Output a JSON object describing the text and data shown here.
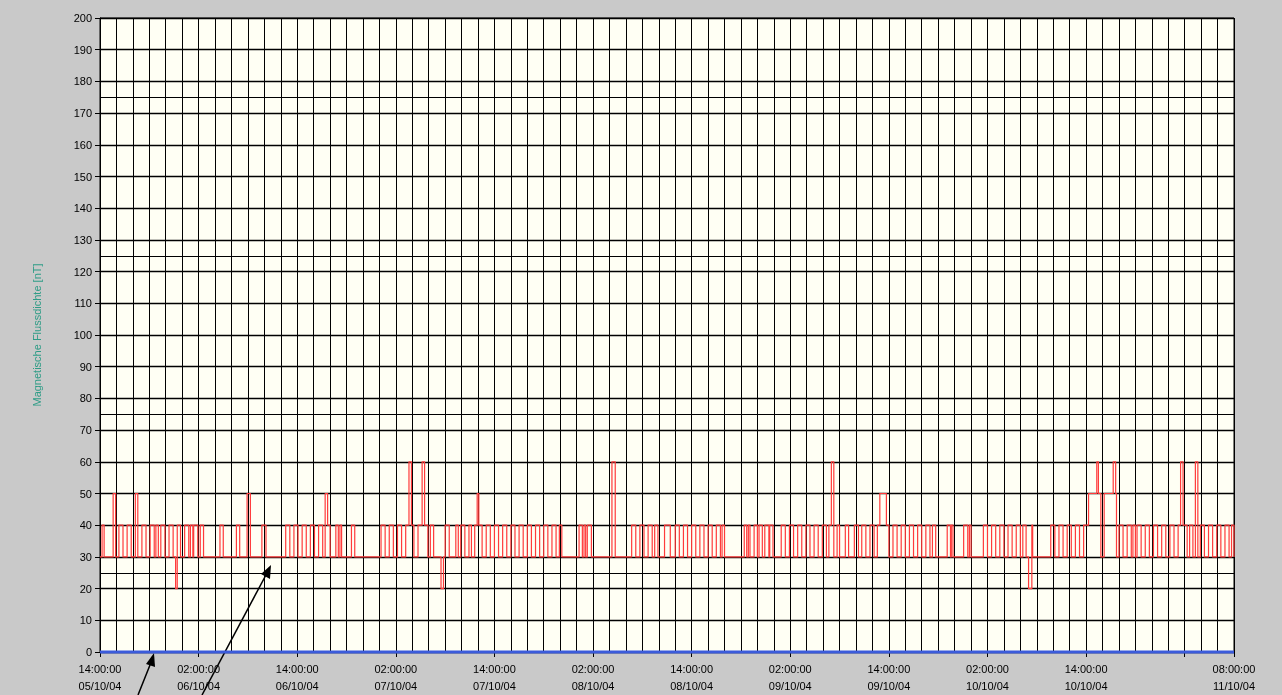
{
  "chart_data": {
    "type": "step",
    "ylabel": "Magnetische Flussdichte [nT]",
    "xlim": [
      "--10-05T14:00",
      "--10-11T08:00"
    ],
    "ylim": [
      0,
      200
    ],
    "xticks": [
      {
        "value": "--10-05T14:00",
        "label": "14:00:00\n05/10/04"
      },
      {
        "value": "--10-06T02:00",
        "label": "02:00:00\n06/10/04"
      },
      {
        "value": "--10-06T14:00",
        "label": "14:00:00\n06/10/04"
      },
      {
        "value": "--10-07T02:00",
        "label": "02:00:00\n07/10/04"
      },
      {
        "value": "--10-07T14:00",
        "label": "14:00:00\n07/10/04"
      },
      {
        "value": "--10-08T02:00",
        "label": "02:00:00\n08/10/04"
      },
      {
        "value": "--10-08T14:00",
        "label": "14:00:00\n08/10/04"
      },
      {
        "value": "--10-09T02:00",
        "label": "02:00:00\n09/10/04"
      },
      {
        "value": "--10-09T14:00",
        "label": "14:00:00\n09/10/04"
      },
      {
        "value": "--10-10T02:00",
        "label": "02:00:00\n10/10/04"
      },
      {
        "value": "--10-10T14:00",
        "label": "14:00:00\n10/10/04"
      },
      {
        "value": "--10-11T02:00",
        "label": null
      },
      {
        "value": "--10-11T08:00",
        "label": "08:00:00\n11/10/04"
      }
    ],
    "yticks": [
      0,
      10,
      20,
      30,
      40,
      50,
      60,
      70,
      80,
      90,
      100,
      110,
      120,
      130,
      140,
      150,
      160,
      170,
      180,
      190,
      200
    ],
    "grid": true,
    "series": [
      {
        "color": "#ff3b3b",
        "x": [
          "--10-05T14:00",
          "--10-05T14:15",
          "--10-05T14:30",
          "--10-05T15:36",
          "--10-05T15:54",
          "--10-05T16:18",
          "--10-05T16:48",
          "--10-05T17:18",
          "--10-05T17:48",
          "--10-05T18:18",
          "--10-05T18:36",
          "--10-05T19:06",
          "--10-05T19:36",
          "--10-05T20:06",
          "--10-05T20:36",
          "--10-05T20:48",
          "--10-05T21:06",
          "--10-05T21:24",
          "--10-05T21:54",
          "--10-05T22:24",
          "--10-05T22:54",
          "--10-05T23:12",
          "--10-05T23:24",
          "--10-05T23:48",
          "--10-06T00:18",
          "--10-06T00:48",
          "--10-06T01:00",
          "--10-06T01:18",
          "--10-06T01:24",
          "--10-06T01:54",
          "--10-06T02:12",
          "--10-06T02:36",
          "--10-06T04:36",
          "--10-06T05:00",
          "--10-06T06:36",
          "--10-06T07:00",
          "--10-06T07:54",
          "--10-06T08:18",
          "--10-06T09:42",
          "--10-06T10:12",
          "--10-06T12:36",
          "--10-06T13:06",
          "--10-06T13:36",
          "--10-06T14:06",
          "--10-06T14:36",
          "--10-06T15:06",
          "--10-06T15:36",
          "--10-06T16:06",
          "--10-06T16:36",
          "--10-06T17:06",
          "--10-06T17:24",
          "--10-06T17:42",
          "--10-06T18:00",
          "--10-06T18:42",
          "--10-06T19:00",
          "--10-06T19:12",
          "--10-06T19:24",
          "--10-06T20:36",
          "--10-06T21:00",
          "--10-07T00:12",
          "--10-07T00:42",
          "--10-07T01:12",
          "--10-07T01:42",
          "--10-07T02:12",
          "--10-07T02:42",
          "--10-07T03:12",
          "--10-07T03:36",
          "--10-07T03:54",
          "--10-07T04:12",
          "--10-07T04:42",
          "--10-07T05:12",
          "--10-07T05:30",
          "--10-07T05:54",
          "--10-07T06:12",
          "--10-07T06:36",
          "--10-07T07:30",
          "--10-07T07:48",
          "--10-07T08:00",
          "--10-07T08:30",
          "--10-07T09:18",
          "--10-07T09:36",
          "--10-07T09:54",
          "--10-07T10:24",
          "--10-07T10:54",
          "--10-07T11:12",
          "--10-07T11:36",
          "--10-07T11:54",
          "--10-07T12:06",
          "--10-07T12:30",
          "--10-07T13:00",
          "--10-07T13:30",
          "--10-07T14:00",
          "--10-07T14:30",
          "--10-07T15:00",
          "--10-07T15:30",
          "--10-07T16:00",
          "--10-07T16:30",
          "--10-07T17:00",
          "--10-07T17:30",
          "--10-07T18:00",
          "--10-07T18:30",
          "--10-07T19:00",
          "--10-07T19:30",
          "--10-07T20:00",
          "--10-07T20:30",
          "--10-07T21:00",
          "--10-07T21:30",
          "--10-07T21:54",
          "--10-07T22:12",
          "--10-08T00:18",
          "--10-08T00:42",
          "--10-08T00:54",
          "--10-08T01:06",
          "--10-08T01:18",
          "--10-08T01:48",
          "--10-08T04:18",
          "--10-08T04:42",
          "--10-08T06:42",
          "--10-08T07:12",
          "--10-08T07:42",
          "--10-08T08:12",
          "--10-08T08:42",
          "--10-08T09:12",
          "--10-08T09:30",
          "--10-08T09:54",
          "--10-08T10:42",
          "--10-08T11:24",
          "--10-08T12:00",
          "--10-08T12:30",
          "--10-08T13:00",
          "--10-08T13:30",
          "--10-08T14:00",
          "--10-08T14:30",
          "--10-08T15:00",
          "--10-08T15:30",
          "--10-08T16:00",
          "--10-08T16:30",
          "--10-08T17:00",
          "--10-08T17:30",
          "--10-08T17:42",
          "--10-08T18:00",
          "--10-08T20:24",
          "--10-08T20:42",
          "--10-08T20:54",
          "--10-08T21:06",
          "--10-08T21:36",
          "--10-08T22:00",
          "--10-08T22:12",
          "--10-08T22:36",
          "--10-08T22:54",
          "--10-08T23:24",
          "--10-08T23:30",
          "--10-08T23:54",
          "--10-09T00:54",
          "--10-09T01:24",
          "--10-09T01:54",
          "--10-09T02:24",
          "--10-09T02:54",
          "--10-09T03:24",
          "--10-09T03:54",
          "--10-09T04:24",
          "--10-09T04:54",
          "--10-09T05:24",
          "--10-09T05:54",
          "--10-09T06:24",
          "--10-09T06:42",
          "--10-09T07:00",
          "--10-09T07:18",
          "--10-09T07:42",
          "--10-09T08:00",
          "--10-09T08:42",
          "--10-09T09:06",
          "--10-09T09:48",
          "--10-09T10:18",
          "--10-09T10:42",
          "--10-09T11:12",
          "--10-09T11:42",
          "--10-09T12:12",
          "--10-09T12:36",
          "--10-09T12:54",
          "--10-09T13:42",
          "--10-09T14:00",
          "--10-09T14:30",
          "--10-09T15:00",
          "--10-09T15:30",
          "--10-09T16:00",
          "--10-09T16:30",
          "--10-09T17:00",
          "--10-09T17:30",
          "--10-09T18:00",
          "--10-09T18:30",
          "--10-09T19:00",
          "--10-09T19:18",
          "--10-09T19:42",
          "--10-09T21:06",
          "--10-09T21:30",
          "--10-09T21:36",
          "--10-09T21:48",
          "--10-09T23:06",
          "--10-09T23:36",
          "--10-09T23:48",
          "--10-10T00:00",
          "--10-10T01:30",
          "--10-10T02:00",
          "--10-10T02:30",
          "--10-10T03:00",
          "--10-10T03:30",
          "--10-10T04:00",
          "--10-10T04:30",
          "--10-10T05:00",
          "--10-10T05:30",
          "--10-10T06:00",
          "--10-10T06:18",
          "--10-10T06:42",
          "--10-10T07:00",
          "--10-10T07:24",
          "--10-10T07:30",
          "--10-10T09:42",
          "--10-10T10:12",
          "--10-10T10:42",
          "--10-10T11:12",
          "--10-10T11:42",
          "--10-10T12:12",
          "--10-10T12:42",
          "--10-10T13:12",
          "--10-10T13:42",
          "--10-10T14:18",
          "--10-10T15:18",
          "--10-10T15:30",
          "--10-10T15:48",
          "--10-10T16:12",
          "--10-10T17:18",
          "--10-10T17:36",
          "--10-10T17:42",
          "--10-10T18:00",
          "--10-10T18:30",
          "--10-10T19:00",
          "--10-10T19:30",
          "--10-10T19:42",
          "--10-10T20:00",
          "--10-10T20:12",
          "--10-10T20:42",
          "--10-10T21:12",
          "--10-10T21:42",
          "--10-10T22:12",
          "--10-10T22:42",
          "--10-10T23:12",
          "--10-10T23:42",
          "--10-11T00:12",
          "--10-11T00:42",
          "--10-11T01:12",
          "--10-11T01:30",
          "--10-11T01:48",
          "--10-11T02:18",
          "--10-11T02:36",
          "--10-11T03:00",
          "--10-11T03:18",
          "--10-11T03:36",
          "--10-11T03:54",
          "--10-11T04:24",
          "--10-11T04:54",
          "--10-11T05:24",
          "--10-11T05:54",
          "--10-11T06:24",
          "--10-11T06:54",
          "--10-11T07:24",
          "--10-11T07:42",
          "--10-11T08:00"
        ],
        "values": [
          30,
          40,
          30,
          50,
          30,
          40,
          30,
          40,
          30,
          50,
          30,
          40,
          30,
          40,
          30,
          40,
          30,
          40,
          30,
          40,
          30,
          20,
          40,
          30,
          40,
          30,
          40,
          30,
          40,
          30,
          40,
          30,
          40,
          30,
          40,
          30,
          50,
          30,
          40,
          30,
          40,
          30,
          40,
          30,
          40,
          30,
          40,
          30,
          40,
          30,
          50,
          40,
          30,
          40,
          30,
          40,
          30,
          40,
          30,
          40,
          30,
          40,
          30,
          40,
          30,
          40,
          60,
          40,
          30,
          40,
          60,
          40,
          30,
          40,
          30,
          20,
          30,
          40,
          30,
          40,
          30,
          40,
          30,
          40,
          30,
          40,
          50,
          40,
          30,
          40,
          30,
          40,
          30,
          40,
          30,
          40,
          30,
          40,
          30,
          40,
          30,
          40,
          30,
          40,
          30,
          40,
          30,
          40,
          30,
          40,
          30,
          40,
          30,
          40,
          30,
          60,
          30,
          40,
          30,
          40,
          30,
          40,
          30,
          40,
          30,
          40,
          30,
          40,
          30,
          40,
          30,
          40,
          30,
          40,
          30,
          40,
          30,
          40,
          30,
          40,
          30,
          40,
          30,
          40,
          30,
          40,
          30,
          40,
          30,
          40,
          30,
          40,
          30,
          40,
          30,
          40,
          30,
          40,
          30,
          40,
          30,
          40,
          30,
          40,
          30,
          40,
          60,
          30,
          40,
          30,
          40,
          30,
          40,
          30,
          40,
          30,
          40,
          30,
          40,
          50,
          40,
          30,
          40,
          30,
          40,
          30,
          40,
          30,
          40,
          30,
          40,
          30,
          40,
          30,
          40,
          30,
          40,
          30,
          40,
          30,
          40,
          30,
          40,
          30,
          40,
          30,
          40,
          30,
          40,
          30,
          40,
          30,
          40,
          30,
          20,
          40,
          30,
          40,
          30,
          40,
          30,
          40,
          30,
          40,
          30,
          40,
          50,
          60,
          50,
          30,
          50,
          60,
          50,
          30,
          40,
          30,
          40,
          30,
          40,
          30,
          40,
          30,
          40,
          30,
          40,
          30,
          40,
          30,
          40,
          30,
          40,
          60,
          40,
          30,
          40,
          30,
          60,
          30,
          40,
          30,
          40,
          30,
          40,
          30,
          40,
          30,
          40,
          30
        ]
      },
      {
        "type": "line",
        "color": "#3b5bdb",
        "x": [
          "--10-05T14:00",
          "--10-11T08:00"
        ],
        "values": [
          0,
          0
        ]
      }
    ]
  }
}
